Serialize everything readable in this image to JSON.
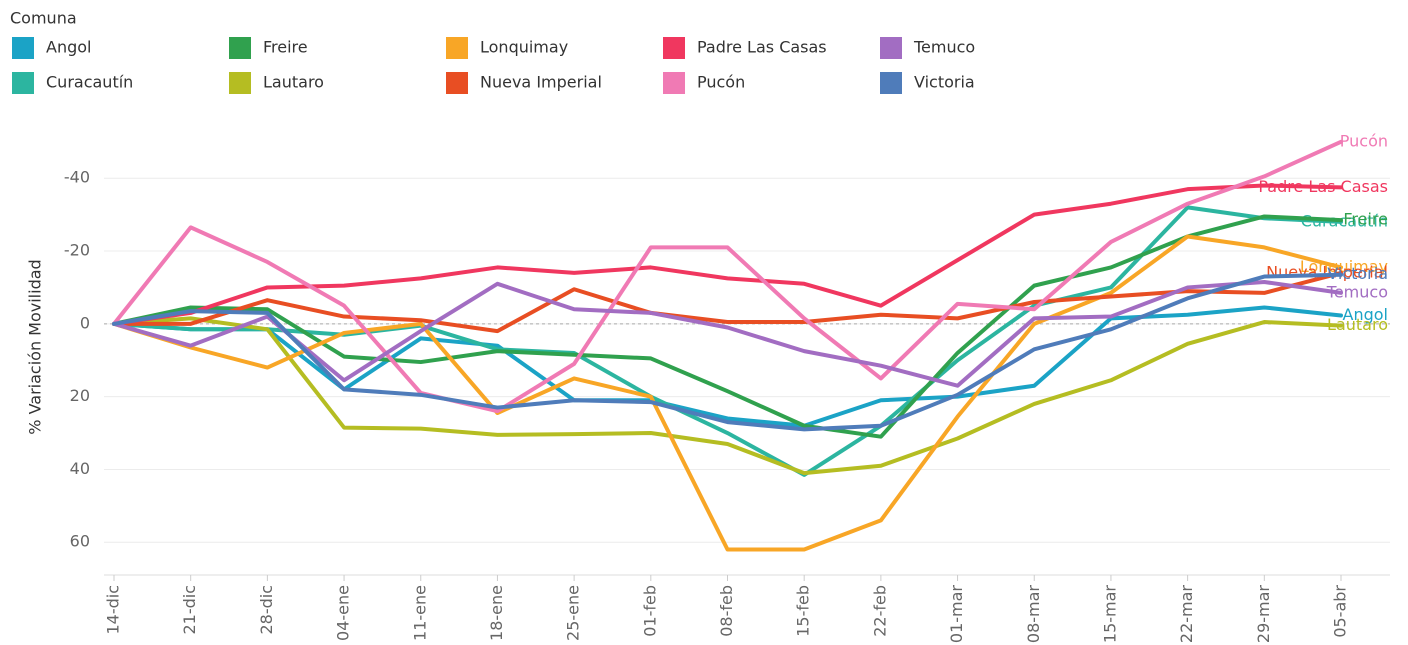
{
  "chart_data": {
    "type": "line",
    "legend_title": "Comuna",
    "ylabel": "% Variación Movilidad",
    "categories": [
      "14-dic",
      "21-dic",
      "28-dic",
      "04-ene",
      "11-ene",
      "18-ene",
      "25-ene",
      "01-feb",
      "08-feb",
      "15-feb",
      "22-feb",
      "01-mar",
      "08-mar",
      "15-mar",
      "22-mar",
      "29-mar",
      "05-abr"
    ],
    "ylim": [
      -56,
      69
    ],
    "y_reversed": true,
    "yticks": [
      -40,
      -20,
      0,
      20,
      40,
      60
    ],
    "grid": true,
    "zero_line": true,
    "series": [
      {
        "name": "Angol",
        "color": "#1ba3c6",
        "values": [
          0,
          1.5,
          1.5,
          18,
          4,
          6,
          21,
          21,
          26,
          28,
          21,
          20,
          17,
          -1.5,
          -2.5,
          -4.5,
          -2.3
        ]
      },
      {
        "name": "Curacautín",
        "color": "#2cb5a0",
        "values": [
          0,
          1.5,
          1.5,
          3,
          0.5,
          7,
          8,
          20,
          30,
          41.5,
          28,
          10,
          -5,
          -10,
          -32,
          -29,
          -28
        ]
      },
      {
        "name": "Freire",
        "color": "#30a14e",
        "values": [
          0,
          -4.5,
          -4,
          9,
          10.5,
          7.5,
          8.5,
          9.5,
          18.5,
          28,
          31,
          8,
          -10.5,
          -15.5,
          -24,
          -29.5,
          -28.5
        ]
      },
      {
        "name": "Lautaro",
        "color": "#b5bd22",
        "values": [
          0,
          -1.5,
          1.5,
          28.5,
          28.8,
          30.5,
          30.3,
          30,
          33,
          41,
          39,
          31.5,
          22,
          15.5,
          5.5,
          -0.5,
          0.5
        ]
      },
      {
        "name": "Lonquimay",
        "color": "#f8a626",
        "values": [
          0,
          6.5,
          12,
          2.5,
          0,
          24.5,
          15,
          20,
          62,
          62,
          54,
          25.5,
          0,
          -8.5,
          -24,
          -21,
          -15.5
        ]
      },
      {
        "name": "Nueva Imperial",
        "color": "#e84e23",
        "values": [
          0,
          0,
          -6.5,
          -2,
          -1,
          2,
          -9.5,
          -3,
          -0.5,
          -0.5,
          -2.5,
          -1.5,
          -6,
          -7.5,
          -9,
          -8.5,
          -14
        ]
      },
      {
        "name": "Padre Las Casas",
        "color": "#f0375f",
        "values": [
          0,
          -3,
          -10,
          -10.5,
          -12.5,
          -15.5,
          -14,
          -15.5,
          -12.5,
          -11,
          -5,
          -17.5,
          -30,
          -33,
          -37,
          -38,
          -37.5
        ]
      },
      {
        "name": "Pucón",
        "color": "#f07ab4",
        "values": [
          0,
          -26.5,
          -17,
          -5,
          19,
          24,
          11,
          -21,
          -21,
          -1.5,
          15,
          -5.5,
          -4,
          -22.5,
          -33,
          -40.5,
          -50
        ]
      },
      {
        "name": "Temuco",
        "color": "#a26dc2",
        "values": [
          0,
          6,
          -2,
          15.5,
          2,
          -11,
          -4,
          -3,
          1,
          7.5,
          11.5,
          17,
          -1.5,
          -2,
          -10,
          -11.5,
          -8.5
        ]
      },
      {
        "name": "Victoria",
        "color": "#4f7cba",
        "values": [
          0,
          -3.5,
          -3,
          18,
          19.5,
          23,
          21,
          21.5,
          27,
          29,
          28,
          19.5,
          7,
          1.5,
          -7,
          -13,
          -13.5
        ]
      }
    ]
  }
}
